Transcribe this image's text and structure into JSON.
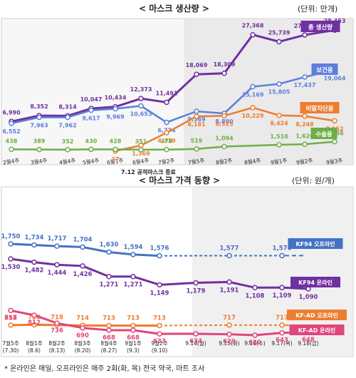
{
  "chart_data": [
    {
      "type": "line",
      "title": "< 마스크 생산량 >",
      "unit": "(단위: 만개)",
      "categories": [
        "2월4주",
        "3월4주",
        "4월4주",
        "5월4주",
        "6월1주",
        "6월4주",
        "7월2주",
        "7월5주",
        "8월2주",
        "8월4주",
        "9월1주",
        "9월2주",
        "9월3주"
      ],
      "annotation": "7.12 공적마스크 종료",
      "series": [
        {
          "name": "총 생산량",
          "color": "#7030A0",
          "values": [
            6990,
            8352,
            8314,
            10047,
            10434,
            12373,
            11491,
            18069,
            18309,
            27368,
            25739,
            27311,
            28453
          ]
        },
        {
          "name": "보건용",
          "color": "#5B7FDB",
          "values": [
            6552,
            7963,
            7962,
            9617,
            9969,
            10653,
            6774,
            9369,
            8890,
            15169,
            15805,
            17437,
            19064
          ]
        },
        {
          "name": "비말차단용",
          "color": "#ED7D31",
          "values": [
            null,
            null,
            null,
            null,
            37,
            1369,
            4339,
            8181,
            8325,
            10229,
            8424,
            8248,
            7152
          ]
        },
        {
          "name": "수술용",
          "color": "#70AD47",
          "values": [
            438,
            389,
            352,
            430,
            428,
            351,
            378,
            519,
            1094,
            null,
            1510,
            1626,
            2236
          ]
        }
      ],
      "series_labels": [
        "총 생산량",
        "보건용",
        "비말차단용",
        "수술용"
      ]
    },
    {
      "type": "line",
      "title": "< 마스크 가격 동향 >",
      "unit": "(단위: 원/개)",
      "categories": [
        "7월5주",
        "8월1주",
        "8월2주",
        "8월3주",
        "8월4주",
        "9월1주",
        "9월2주",
        "9.14(월)",
        "9.15(화)",
        "9.16(수)",
        "9.17(목)",
        "9.18(금)"
      ],
      "category_sub": [
        "(7.30)",
        "(8.6)",
        "(8.13)",
        "(8.20)",
        "(8.27)",
        "(9.3)",
        "(9.10)",
        "",
        "",
        "",
        "",
        ""
      ],
      "series": [
        {
          "name": "KF94 오프라인",
          "color": "#4472C4",
          "values": [
            1750,
            1734,
            1717,
            1704,
            1630,
            1594,
            1576,
            null,
            1577,
            null,
            1578,
            null
          ]
        },
        {
          "name": "KF94 온라인",
          "color": "#7030A0",
          "values": [
            1530,
            1482,
            1444,
            1426,
            1271,
            1271,
            1149,
            1179,
            1191,
            1108,
            1109,
            1090
          ]
        },
        {
          "name": "KF-AD 오프라인",
          "color": "#ED7D31",
          "values": [
            717,
            720,
            718,
            714,
            713,
            713,
            713,
            null,
            717,
            null,
            717,
            null
          ]
        },
        {
          "name": "KF-AD 온라인",
          "color": "#E0457B",
          "values": [
            858,
            812,
            736,
            690,
            668,
            668,
            633,
            634,
            629,
            620,
            643,
            648
          ]
        }
      ]
    }
  ],
  "footnote": "* 온라인은 매일, 오프라인은 매주 2회(화, 목) 전국 약국, 마트 조사"
}
